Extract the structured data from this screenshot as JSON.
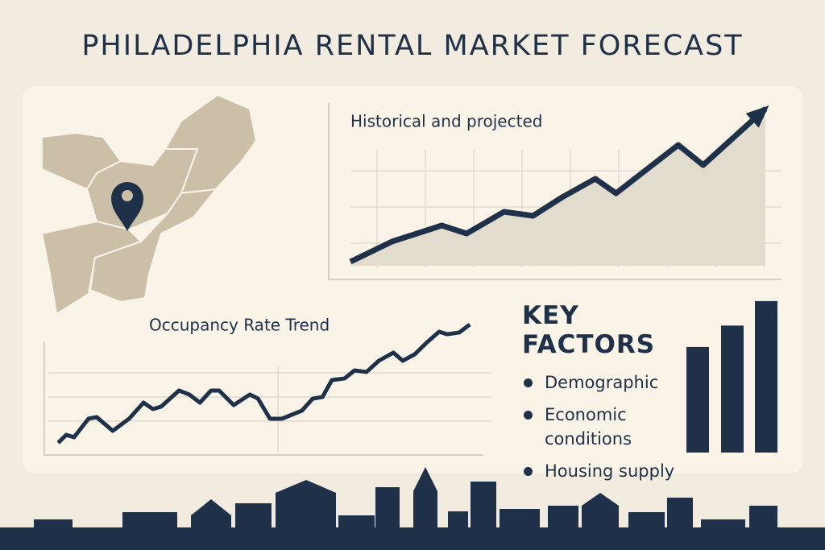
{
  "title": "PHILADELPHIA RENTAL MARKET FORECAST",
  "key_factors": {
    "heading": "KEY FACTORS",
    "items": [
      "Demographic",
      "Economic conditions",
      "Housing supply"
    ]
  },
  "chart_data": [
    {
      "type": "line",
      "title": "Historical and projected",
      "color": "#1f3049",
      "area_color": "#e2dccf",
      "xlim": [
        0,
        100
      ],
      "ylim": [
        0,
        100
      ],
      "x": [
        0,
        10,
        22,
        28,
        37,
        44,
        51,
        59,
        64,
        71,
        79,
        85,
        100
      ],
      "values": [
        2.5,
        15,
        25,
        20,
        33.5,
        31,
        42.5,
        54,
        45,
        59,
        75,
        62.5,
        97.5
      ]
    },
    {
      "type": "line",
      "title": "Occupancy Rate Trend",
      "color": "#1f3049",
      "xlim": [
        0,
        100
      ],
      "ylim": [
        0,
        100
      ],
      "x": [
        2.3,
        4.2,
        6,
        9.4,
        11.3,
        15.1,
        18.9,
        22.3,
        24.5,
        26.4,
        30.6,
        33,
        35.5,
        38.1,
        40,
        43.4,
        47.2,
        49.1,
        51.9,
        54.7,
        57,
        59.4,
        61.9,
        64.2,
        66.4,
        69.4,
        71.7,
        74.5,
        77.4,
        80.8,
        83,
        85.8,
        88.7,
        91.5,
        93.4,
        96.2,
        98.7
      ],
      "values": [
        6.3,
        12.5,
        10.6,
        25,
        26.3,
        15.6,
        25,
        37.5,
        32.5,
        34.4,
        46.9,
        43.8,
        37.5,
        46.9,
        46.9,
        35.6,
        43.8,
        40.6,
        25,
        25,
        28.1,
        31.3,
        40.6,
        41.9,
        55,
        56.3,
        62.5,
        61.3,
        70,
        76.3,
        70,
        75,
        84.4,
        92.5,
        90.6,
        91.9,
        98.1
      ]
    },
    {
      "type": "bar",
      "color": "#1f3049",
      "ylim": [
        0,
        100
      ],
      "values": [
        69,
        83,
        99
      ]
    }
  ]
}
